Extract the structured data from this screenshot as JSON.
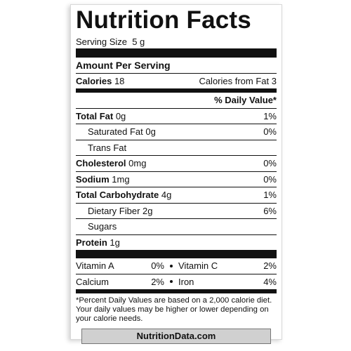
{
  "title": "Nutrition Facts",
  "serving_size": {
    "label": "Serving Size",
    "value": "5 g"
  },
  "amount_per_serving": "Amount Per Serving",
  "calories": {
    "label": "Calories",
    "value": "18",
    "from_fat_label": "Calories from Fat",
    "from_fat_value": "3"
  },
  "daily_value_header": "% Daily Value*",
  "nutrients": [
    {
      "name": "Total Fat",
      "amount": "0g",
      "dv": "1%"
    },
    {
      "name": "Saturated Fat",
      "amount": "0g",
      "dv": "0%"
    },
    {
      "name": "Trans Fat"
    },
    {
      "name": "Cholesterol",
      "amount": "0mg",
      "dv": "0%"
    },
    {
      "name": "Sodium",
      "amount": "1mg",
      "dv": "0%"
    },
    {
      "name": "Total Carbohydrate",
      "amount": "4g",
      "dv": "1%"
    },
    {
      "name": "Dietary Fiber",
      "amount": "2g",
      "dv": "6%"
    },
    {
      "name": "Sugars"
    },
    {
      "name": "Protein",
      "amount": "1g"
    }
  ],
  "vitamins": [
    [
      {
        "name": "Vitamin A",
        "dv": "0%"
      },
      {
        "name": "Vitamin C",
        "dv": "2%"
      }
    ],
    [
      {
        "name": "Calcium",
        "dv": "2%"
      },
      {
        "name": "Iron",
        "dv": "4%"
      }
    ]
  ],
  "footnote": "*Percent Daily Values are based on a 2,000 calorie diet. Your daily values may be higher or lower depending on your calorie needs.",
  "source": "NutritionData.com"
}
